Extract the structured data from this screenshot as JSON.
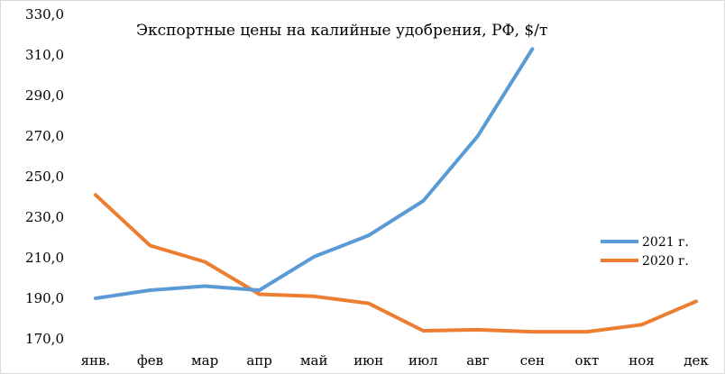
{
  "chart_data": {
    "type": "line",
    "title": "Экспортные цены на калийные удобрения, РФ, $/т",
    "categories": [
      "янв.",
      "фев",
      "мар",
      "апр",
      "май",
      "июн",
      "июл",
      "авг",
      "сен",
      "окт",
      "ноя",
      "дек"
    ],
    "yticks": [
      "170,0",
      "190,0",
      "210,0",
      "230,0",
      "250,0",
      "270,0",
      "290,0",
      "310,0",
      "330,0"
    ],
    "ylim": [
      170,
      330
    ],
    "grid": false,
    "legend_position": "right",
    "series": [
      {
        "name": "2021 г.",
        "color": "#5B9BD5",
        "values": [
          190,
          194,
          196,
          194,
          210.5,
          221,
          238,
          270,
          313,
          null,
          null,
          null
        ]
      },
      {
        "name": "2020 г.",
        "color": "#ED7D31",
        "values": [
          241,
          216,
          208,
          192,
          191,
          187.5,
          174,
          174.5,
          173.5,
          173.5,
          177,
          188.5
        ]
      }
    ]
  }
}
